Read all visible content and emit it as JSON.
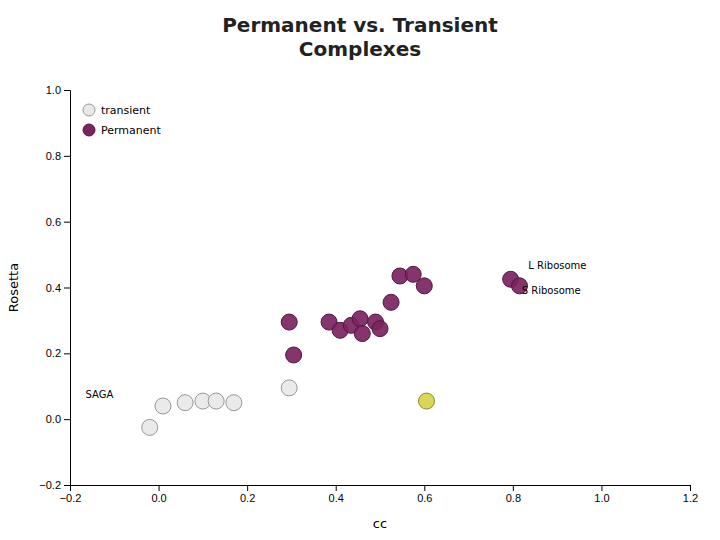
{
  "chart_data": {
    "type": "scatter",
    "title": "Permanent vs. Transient\nComplexes",
    "x_label": "cc",
    "y_label": "Rosetta",
    "xlim": [
      -0.2,
      1.2
    ],
    "ylim": [
      -0.2,
      1.0
    ],
    "xticks": [
      {
        "value": -0.2,
        "label": "−0.2"
      },
      {
        "value": 0,
        "label": "0.0"
      },
      0.2,
      0.4,
      0.6,
      0.8,
      {
        "value": 1.0,
        "label": "1.0"
      },
      1.2
    ],
    "yticks": [
      {
        "value": -0.2,
        "label": "−0.2"
      },
      {
        "value": 0,
        "label": "0.0"
      },
      0.2,
      0.4,
      0.6,
      0.8,
      {
        "value": 1.0,
        "label": "1.0"
      }
    ],
    "grid": false,
    "legend": "upper left",
    "series": [
      {
        "name": "transient",
        "color": "#E8E8E8",
        "x": [
          -0.02,
          0.01,
          0.06,
          0.1,
          0.13,
          0.17,
          0.295
        ],
        "values": [
          -0.025,
          0.04,
          0.05,
          0.055,
          0.055,
          0.05,
          0.095
        ]
      },
      {
        "color": "#D4D44A",
        "x": [
          0.605
        ],
        "values": [
          0.055
        ]
      },
      {
        "name": "Permanent",
        "color": "#7B2460",
        "x": [
          0.295,
          0.305,
          0.385,
          0.41,
          0.435,
          0.455,
          0.46,
          0.49,
          0.5,
          0.525,
          0.545,
          0.575,
          0.6,
          0.795,
          0.815
        ],
        "values": [
          0.295,
          0.195,
          0.295,
          0.27,
          0.285,
          0.305,
          0.26,
          0.295,
          0.275,
          0.355,
          0.435,
          0.44,
          0.405,
          0.425,
          0.405
        ]
      }
    ],
    "annotations": [
      {
        "text": "L Ribosome",
        "x": 0.835,
        "y": 0.455
      },
      {
        "text": "S Ribosome",
        "x": 0.82,
        "y": 0.38
      },
      {
        "text": "SAGA",
        "x": -0.165,
        "y": 0.065
      }
    ]
  }
}
